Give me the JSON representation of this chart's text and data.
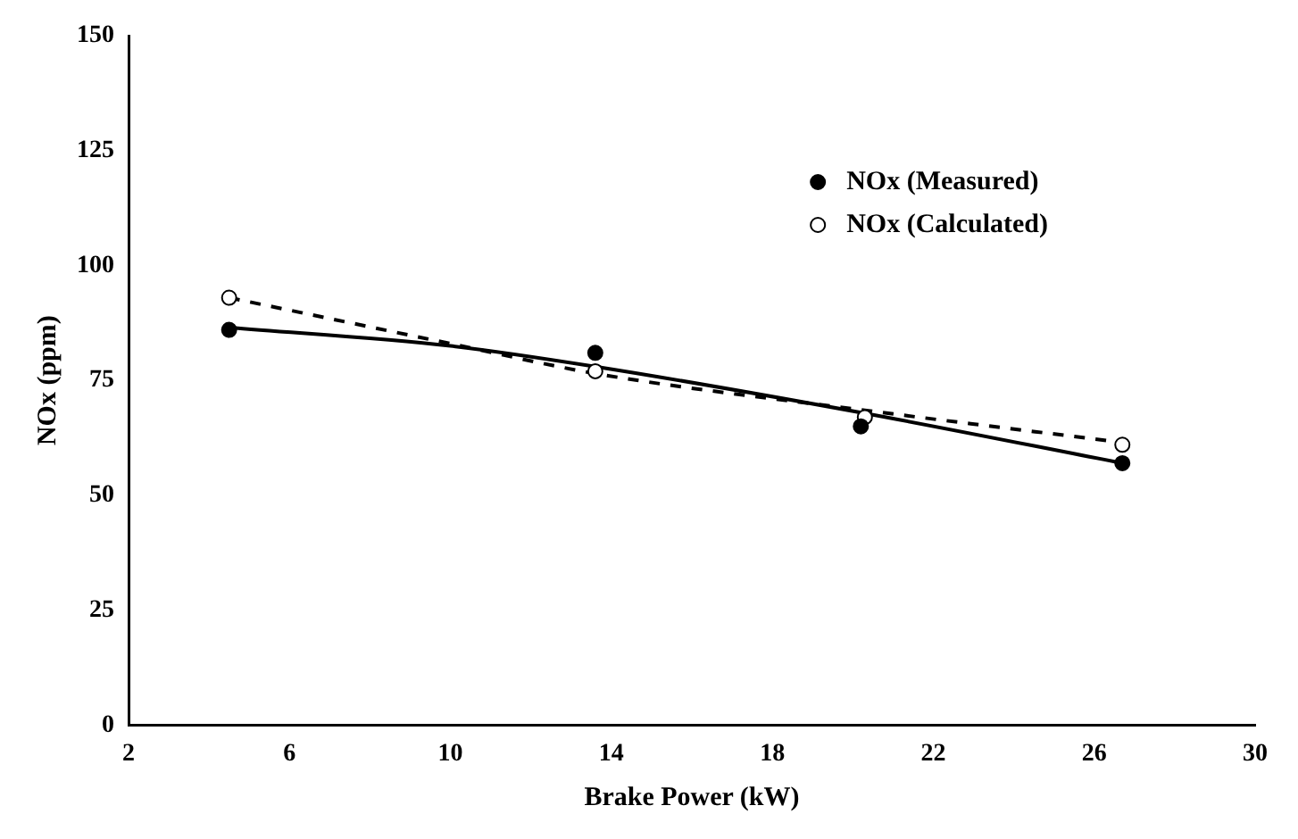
{
  "chart_data": {
    "type": "scatter",
    "xlabel": "Brake Power (kW)",
    "ylabel": "NOx (ppm)",
    "xlim": [
      2,
      30
    ],
    "xticks": [
      2,
      6,
      10,
      14,
      18,
      22,
      26,
      30
    ],
    "ylim": [
      0,
      150
    ],
    "yticks": [
      0,
      25,
      50,
      75,
      100,
      125,
      150
    ],
    "grid": false,
    "legend": "top right",
    "marker": "circle",
    "series": [
      {
        "name": "NOx (Measured)",
        "type": "scatter",
        "color": "#000000",
        "x": [
          4.5,
          13.6,
          20.2,
          26.7
        ],
        "values": [
          86,
          81,
          65,
          57
        ]
      },
      {
        "name": "NOx (Calculated)",
        "type": "scatter",
        "color": "#ffffff",
        "x": [
          4.5,
          13.6,
          20.3,
          26.7
        ],
        "values": [
          93,
          77,
          67,
          61
        ]
      },
      {
        "type": "line",
        "color": "#000000",
        "line_style": "solid",
        "marker": "none",
        "x": [
          4.5,
          10,
          13.6,
          20.2,
          26.7
        ],
        "values": [
          86.5,
          82.5,
          78,
          68,
          57
        ]
      },
      {
        "type": "line",
        "color": "#000000",
        "line_style": "dashed",
        "marker": "none",
        "x": [
          4.5,
          10,
          13.6,
          20.3,
          26.7
        ],
        "values": [
          93,
          83,
          76.5,
          68.5,
          61.5
        ]
      }
    ]
  }
}
